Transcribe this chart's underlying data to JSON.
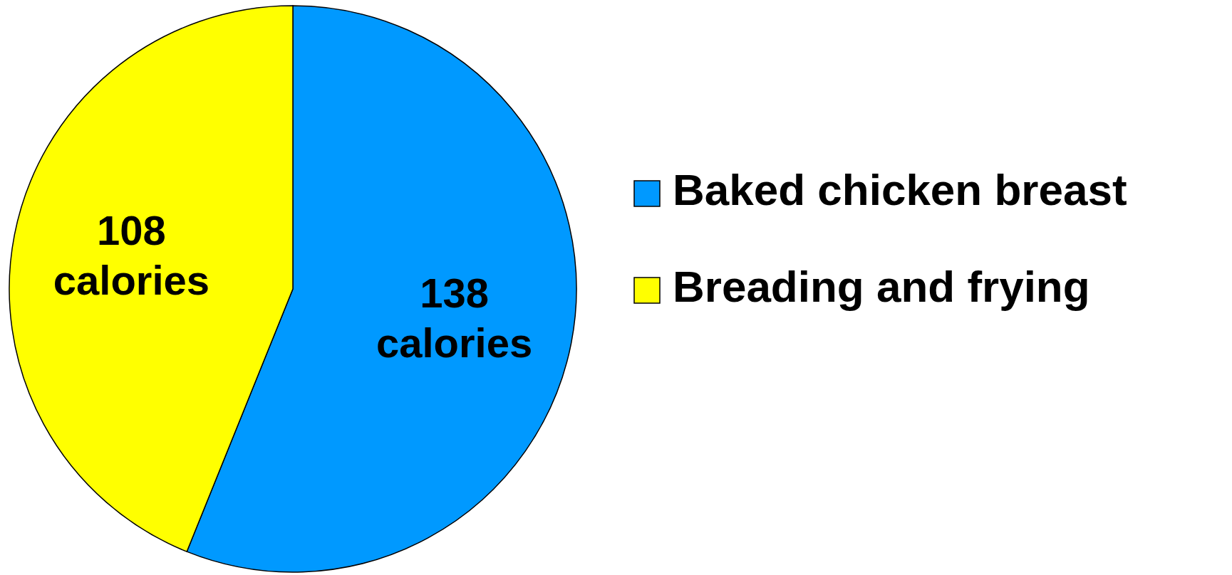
{
  "chart_data": {
    "type": "pie",
    "categories": [
      "Baked chicken breast",
      "Breading and frying"
    ],
    "values": [
      138,
      108
    ],
    "colors": [
      "#0099ff",
      "#ffff00"
    ],
    "value_labels": [
      "138 calories",
      "108 calories"
    ],
    "legend": "right"
  }
}
